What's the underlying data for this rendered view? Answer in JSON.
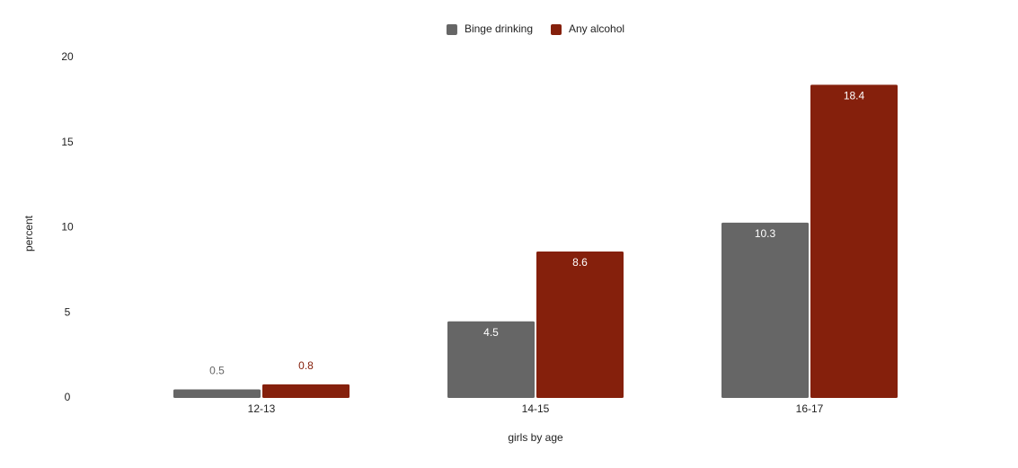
{
  "chart_data": {
    "type": "bar",
    "categories": [
      "12-13",
      "14-15",
      "16-17"
    ],
    "series": [
      {
        "name": "Binge drinking",
        "color": "#666666",
        "values": [
          0.5,
          4.5,
          10.3
        ]
      },
      {
        "name": "Any alcohol",
        "color": "#85200c",
        "values": [
          0.8,
          8.6,
          18.4
        ]
      }
    ],
    "ylim": [
      0,
      20
    ],
    "yticks": [
      0,
      5,
      10,
      15,
      20
    ],
    "x_label": "girls by age",
    "y_label": "percent",
    "grid": false,
    "legend": "top"
  }
}
